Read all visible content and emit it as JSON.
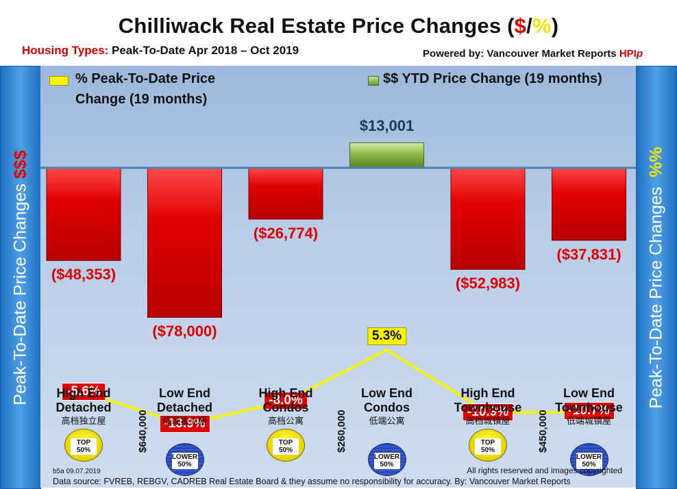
{
  "header": {
    "title_prefix": "Chilliwack Real Estate Price Changes (",
    "title_dollar": "$",
    "title_slash": "/",
    "title_pct": "%",
    "title_suffix": ")",
    "subtitle_label": "Housing Types:",
    "subtitle_text": "Peak-To-Date Apr 2018 – Oct 2019",
    "powered_label": "Powered by: Vancouver Market Reports",
    "powered_hpi": "HPI",
    "powered_p": "p"
  },
  "side_left": {
    "text": "Peak-To-Date Price Changes",
    "accent": "$$$"
  },
  "side_right": {
    "text": "Peak-To-Date  Price  Changes",
    "accent": "%%"
  },
  "colors": {
    "bar_negative": "#e00000",
    "bar_positive": "#8cb84a",
    "line": "#f5f500",
    "baseline": "#4f7fb0"
  },
  "chart_data": {
    "type": "bar",
    "combo_line": true,
    "categories": [
      [
        "High End",
        "Detached"
      ],
      [
        "Low End",
        "Detached"
      ],
      [
        "High End",
        "Condos"
      ],
      [
        "Low End",
        "Condos"
      ],
      [
        "High End",
        "Townhouse"
      ],
      [
        "Low End",
        "Townhouse"
      ]
    ],
    "categories_cn": [
      "高档独立屋",
      "低端独立屋",
      "高档公寓",
      "低端公寓",
      "高档城镇屋",
      "低端城镇屋"
    ],
    "series": [
      {
        "name": "$$ YTD Price Change (19 months)",
        "type": "bar",
        "values": [
          -48353,
          -78000,
          -26774,
          13001,
          -52983,
          -37831
        ],
        "labels": [
          "($48,353)",
          "($78,000)",
          "($26,774)",
          "$13,001",
          "($52,983)",
          "($37,831)"
        ]
      },
      {
        "name": "% Peak-To-Date Price Change (19 months)",
        "type": "line",
        "values": [
          -5.6,
          -13.9,
          -8.0,
          5.3,
          -10.9,
          -10.7
        ],
        "labels": [
          "-5.6%",
          "-13.9%",
          "-8.0%",
          "5.3%",
          "-10.9%",
          "-10.7%"
        ]
      }
    ],
    "legend": [
      {
        "line1": "% Peak-To-Date Price",
        "line2": "Change (19 months)"
      },
      {
        "line1": "$$ YTD Price Change (19 months)"
      }
    ],
    "badges": [
      {
        "l1": "TOP",
        "l2": "50%",
        "kind": "top"
      },
      {
        "l1": "LOWER",
        "l2": "50%",
        "kind": "lower"
      },
      {
        "l1": "TOP",
        "l2": "50%",
        "kind": "top"
      },
      {
        "l1": "LOWER",
        "l2": "50%",
        "kind": "lower"
      },
      {
        "l1": "TOP",
        "l2": "50%",
        "kind": "top"
      },
      {
        "l1": "LOWER",
        "l2": "50%",
        "kind": "lower"
      }
    ],
    "price_thresholds": [
      "$640,000",
      "$260,000",
      "$450,000"
    ],
    "ylabel_left": "Peak-To-Date Price Changes $$$",
    "ylabel_right": "Peak-To-Date Price Changes %%"
  },
  "footer": {
    "id": "b5a 09.07.2019",
    "rights": "All rights reserved and  images copyrighted",
    "source": "Data source: FVREB, REBGV, CADREB Real Estate Board & they assume no responsibility for accuracy. By: Vancouver Market Reports"
  }
}
